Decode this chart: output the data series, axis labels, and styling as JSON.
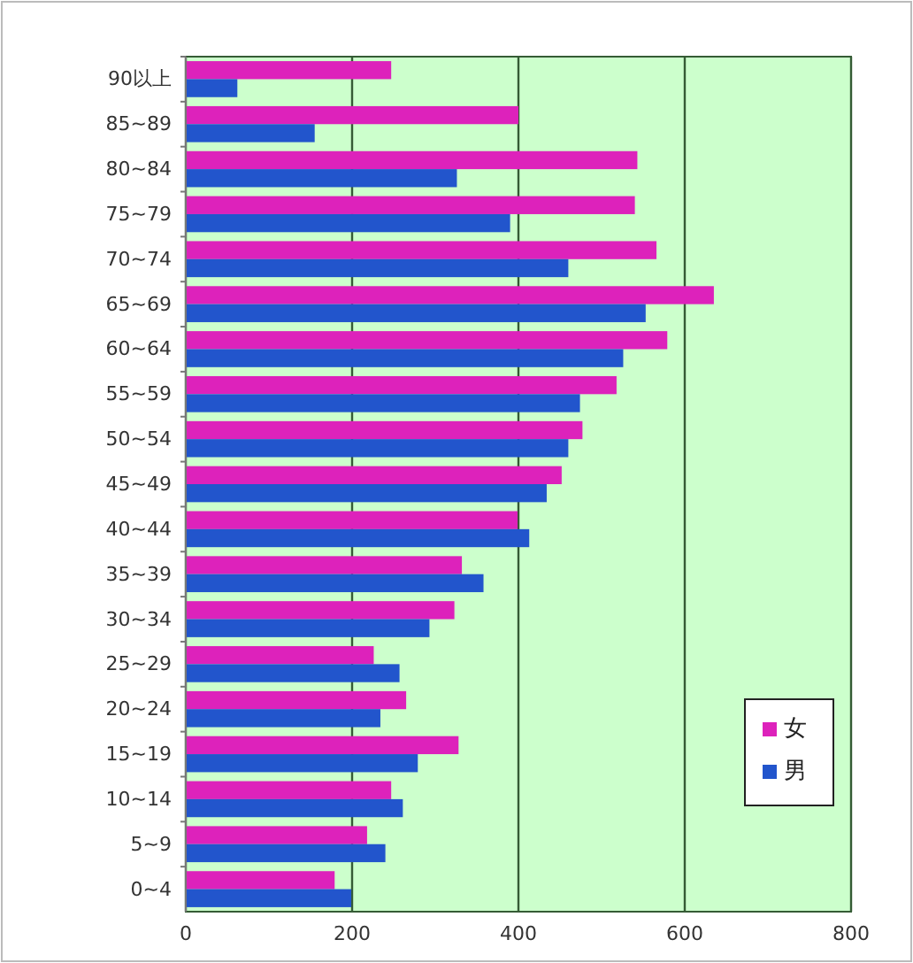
{
  "chart_data": {
    "type": "bar",
    "orientation": "horizontal",
    "categories": [
      "90以上",
      "85~89",
      "80~84",
      "75~79",
      "70~74",
      "65~69",
      "60~64",
      "55~59",
      "50~54",
      "45~49",
      "40~44",
      "35~39",
      "30~34",
      "25~29",
      "20~24",
      "15~19",
      "10~14",
      "5~9",
      "0~4"
    ],
    "series": [
      {
        "name": "女",
        "color": "#dd22bb",
        "values": [
          247,
          400,
          543,
          540,
          566,
          635,
          579,
          518,
          477,
          452,
          399,
          332,
          323,
          226,
          265,
          328,
          247,
          218,
          179
        ]
      },
      {
        "name": "男",
        "color": "#2255cc",
        "values": [
          62,
          155,
          326,
          390,
          460,
          553,
          526,
          474,
          460,
          434,
          413,
          358,
          293,
          257,
          234,
          279,
          261,
          240,
          199
        ]
      }
    ],
    "xlim": [
      0,
      800
    ],
    "xticks": [
      0,
      200,
      400,
      600,
      800
    ],
    "grid": "x",
    "legend": "bottom right"
  }
}
